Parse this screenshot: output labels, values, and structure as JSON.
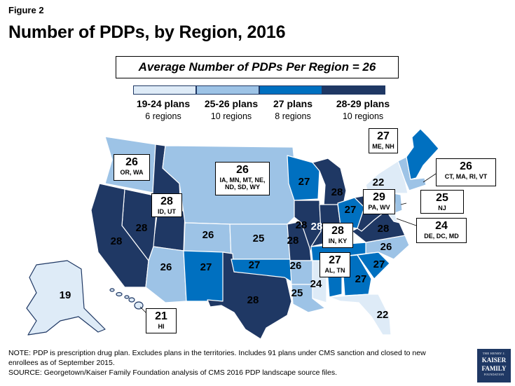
{
  "figure_label": "Figure 2",
  "title": "Number of PDPs, by Region, 2016",
  "average_box": "Average Number of PDPs Per Region = 26",
  "legend": [
    {
      "label": "19-24 plans",
      "sub": "6 regions",
      "color": "#deebf7"
    },
    {
      "label": "25-26 plans",
      "sub": "10 regions",
      "color": "#9dc3e6"
    },
    {
      "label": "27 plans",
      "sub": "8 regions",
      "color": "#0070c0"
    },
    {
      "label": "28-29 plans",
      "sub": "10 regions",
      "color": "#1f3864"
    }
  ],
  "map_labels": [
    {
      "text": "28",
      "tier": 3
    },
    {
      "text": "28",
      "tier": 3
    },
    {
      "text": "26",
      "tier": 1
    },
    {
      "text": "27",
      "tier": 2
    },
    {
      "text": "26",
      "tier": 1
    },
    {
      "text": "27",
      "tier": 2
    },
    {
      "text": "25",
      "tier": 1
    },
    {
      "text": "28",
      "tier": 3
    },
    {
      "text": "27",
      "tier": 2
    },
    {
      "text": "28",
      "tier": 3
    },
    {
      "text": "26",
      "tier": 1
    },
    {
      "text": "25",
      "tier": 1
    },
    {
      "text": "24",
      "tier": 0
    },
    {
      "text": "27",
      "tier": 2
    },
    {
      "text": "27",
      "tier": 2
    },
    {
      "text": "22",
      "tier": 0
    },
    {
      "text": "26",
      "tier": 1
    },
    {
      "text": "28",
      "tier": 3
    },
    {
      "text": "22",
      "tier": 0
    },
    {
      "text": "28",
      "tier": 3
    },
    {
      "text": "19",
      "tier": 0
    },
    {
      "text": "28",
      "tier": 3
    },
    {
      "text": "28",
      "tier": 3
    },
    {
      "text": "27",
      "tier": 2
    }
  ],
  "callouts": [
    {
      "num": "26",
      "states": "OR, WA"
    },
    {
      "num": "26",
      "states": "IA, MN, MT, NE, ND, SD, WY"
    },
    {
      "num": "28",
      "states": "ID, UT"
    },
    {
      "num": "27",
      "states": "ME, NH"
    },
    {
      "num": "26",
      "states": "CT, MA, RI, VT"
    },
    {
      "num": "29",
      "states": "PA, WV"
    },
    {
      "num": "25",
      "states": "NJ"
    },
    {
      "num": "24",
      "states": "DE, DC, MD"
    },
    {
      "num": "28",
      "states": "IN, KY"
    },
    {
      "num": "27",
      "states": "AL, TN"
    },
    {
      "num": "21",
      "states": "HI"
    }
  ],
  "note": "NOTE: PDP is prescription drug plan. Excludes plans in the territories. Includes 91 plans under CMS sanction and closed to new enrollees as of September 2015.",
  "source": "SOURCE: Georgetown/Kaiser Family Foundation analysis of CMS 2016 PDP landscape source files.",
  "logo": {
    "line1": "THE HENRY J.",
    "line2a": "KAISER",
    "line2b": "FAMILY",
    "line3": "FOUNDATION"
  }
}
